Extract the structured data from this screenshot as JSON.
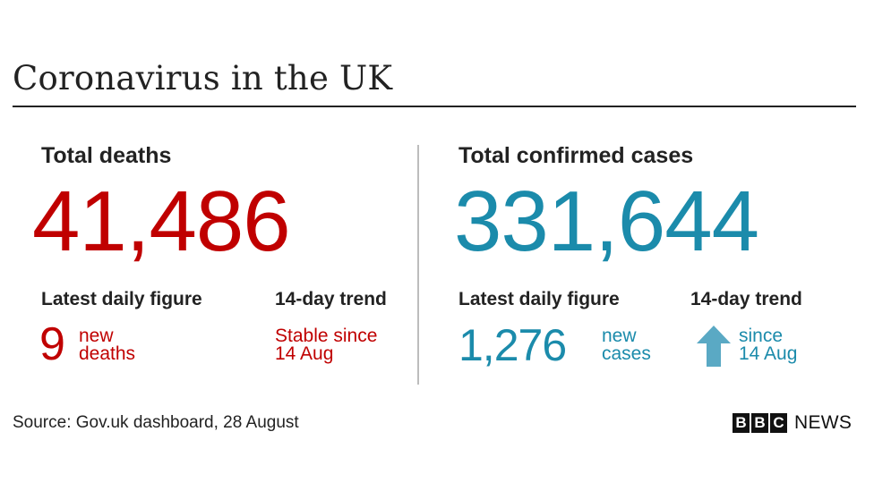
{
  "title": "Coronavirus in the UK",
  "deaths": {
    "label": "Total deaths",
    "total": "41,486",
    "latest_label": "Latest daily figure",
    "latest_value": "9",
    "latest_unit_line1": "new",
    "latest_unit_line2": "deaths",
    "trend_label": "14-day trend",
    "trend_line1": "Stable since",
    "trend_line2": "14 Aug"
  },
  "cases": {
    "label": "Total confirmed cases",
    "total": "331,644",
    "latest_label": "Latest daily figure",
    "latest_value": "1,276",
    "latest_unit_line1": "new",
    "latest_unit_line2": "cases",
    "trend_label": "14-day trend",
    "trend_icon": "arrow-up-icon",
    "trend_line1": "since",
    "trend_line2": "14 Aug"
  },
  "source": "Source: Gov.uk dashboard, 28 August",
  "branding": {
    "letters": [
      "B",
      "B",
      "C"
    ],
    "news": "NEWS"
  },
  "colors": {
    "deaths": "#c00000",
    "cases": "#1b8bab",
    "text": "#222222",
    "arrow": "#5aa9c4",
    "divider": "#bdbdbd"
  }
}
